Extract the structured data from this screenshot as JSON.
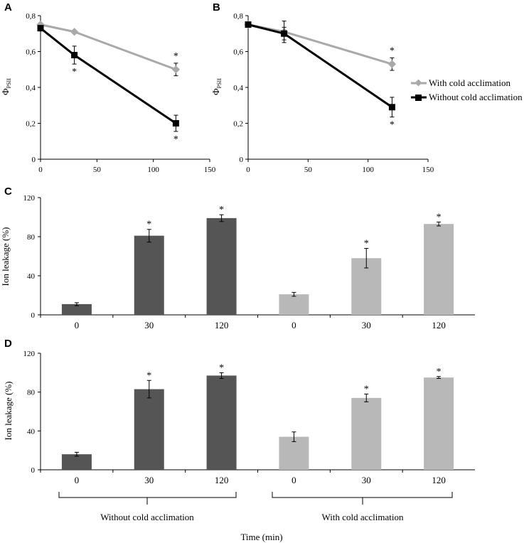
{
  "legend": {
    "with_label": "With cold acclimation",
    "without_label": "Without cold acclimation"
  },
  "colors": {
    "with": "#a9a9a9",
    "without": "#000000",
    "bar_dark": "#555555",
    "bar_light": "#b8b8b8"
  },
  "chart_data": [
    {
      "id": "A",
      "type": "line",
      "panel_label": "A",
      "ylabel": "Φ",
      "ylabel_sub": "PSII",
      "xlim": [
        0,
        150
      ],
      "ylim": [
        0,
        0.8
      ],
      "xticks": [
        "0",
        "50",
        "100",
        "150"
      ],
      "yticks": [
        "0",
        "0,2",
        "0,4",
        "0,6",
        "0,8"
      ],
      "x": [
        0,
        30,
        120
      ],
      "series": [
        {
          "name": "With cold acclimation",
          "key": "with",
          "values": [
            0.75,
            0.71,
            0.5
          ],
          "err": [
            0.01,
            0.01,
            0.035
          ],
          "stars": [
            false,
            false,
            true
          ]
        },
        {
          "name": "Without cold acclimation",
          "key": "without",
          "values": [
            0.73,
            0.58,
            0.2
          ],
          "err": [
            0.01,
            0.05,
            0.045
          ],
          "stars": [
            false,
            true,
            true
          ]
        }
      ]
    },
    {
      "id": "B",
      "type": "line",
      "panel_label": "B",
      "ylabel": "Φ",
      "ylabel_sub": "PSII",
      "xlim": [
        0,
        150
      ],
      "ylim": [
        0,
        0.8
      ],
      "xticks": [
        "0",
        "50",
        "100",
        "150"
      ],
      "yticks": [
        "0",
        "0,2",
        "0,4",
        "0,6",
        "0,8"
      ],
      "x": [
        0,
        30,
        120
      ],
      "series": [
        {
          "name": "With cold acclimation",
          "key": "with",
          "values": [
            0.75,
            0.71,
            0.53
          ],
          "err": [
            0.01,
            0.06,
            0.035
          ],
          "stars": [
            false,
            false,
            true
          ]
        },
        {
          "name": "Without cold acclimation",
          "key": "without",
          "values": [
            0.75,
            0.7,
            0.29
          ],
          "err": [
            0.01,
            0.035,
            0.055
          ],
          "stars": [
            false,
            false,
            true
          ]
        }
      ]
    },
    {
      "id": "C",
      "type": "bar",
      "panel_label": "C",
      "ylabel": "Ion leakage (%)",
      "ylim": [
        0,
        120
      ],
      "yticks": [
        "0",
        "40",
        "80",
        "120"
      ],
      "categories": [
        "0",
        "30",
        "120",
        "0",
        "30",
        "120"
      ],
      "groups": [
        "without",
        "without",
        "without",
        "with",
        "with",
        "with"
      ],
      "values": [
        11,
        81,
        99,
        21,
        58,
        93
      ],
      "err": [
        1.5,
        6.5,
        3.5,
        2,
        10,
        2
      ],
      "stars": [
        false,
        true,
        true,
        false,
        true,
        true
      ]
    },
    {
      "id": "D",
      "type": "bar",
      "panel_label": "D",
      "ylabel": "Ion leakage (%)",
      "ylim": [
        0,
        120
      ],
      "yticks": [
        "0",
        "40",
        "80",
        "120"
      ],
      "categories": [
        "0",
        "30",
        "120",
        "0",
        "30",
        "120"
      ],
      "groups": [
        "without",
        "without",
        "without",
        "with",
        "with",
        "with"
      ],
      "values": [
        16,
        83,
        97,
        34,
        74,
        95
      ],
      "err": [
        2,
        9,
        3,
        5,
        4,
        1
      ],
      "stars": [
        false,
        true,
        true,
        false,
        true,
        true
      ],
      "group_labels": [
        "Without cold acclimation",
        "With cold acclimation"
      ],
      "xlabel": "Time (min)"
    }
  ]
}
